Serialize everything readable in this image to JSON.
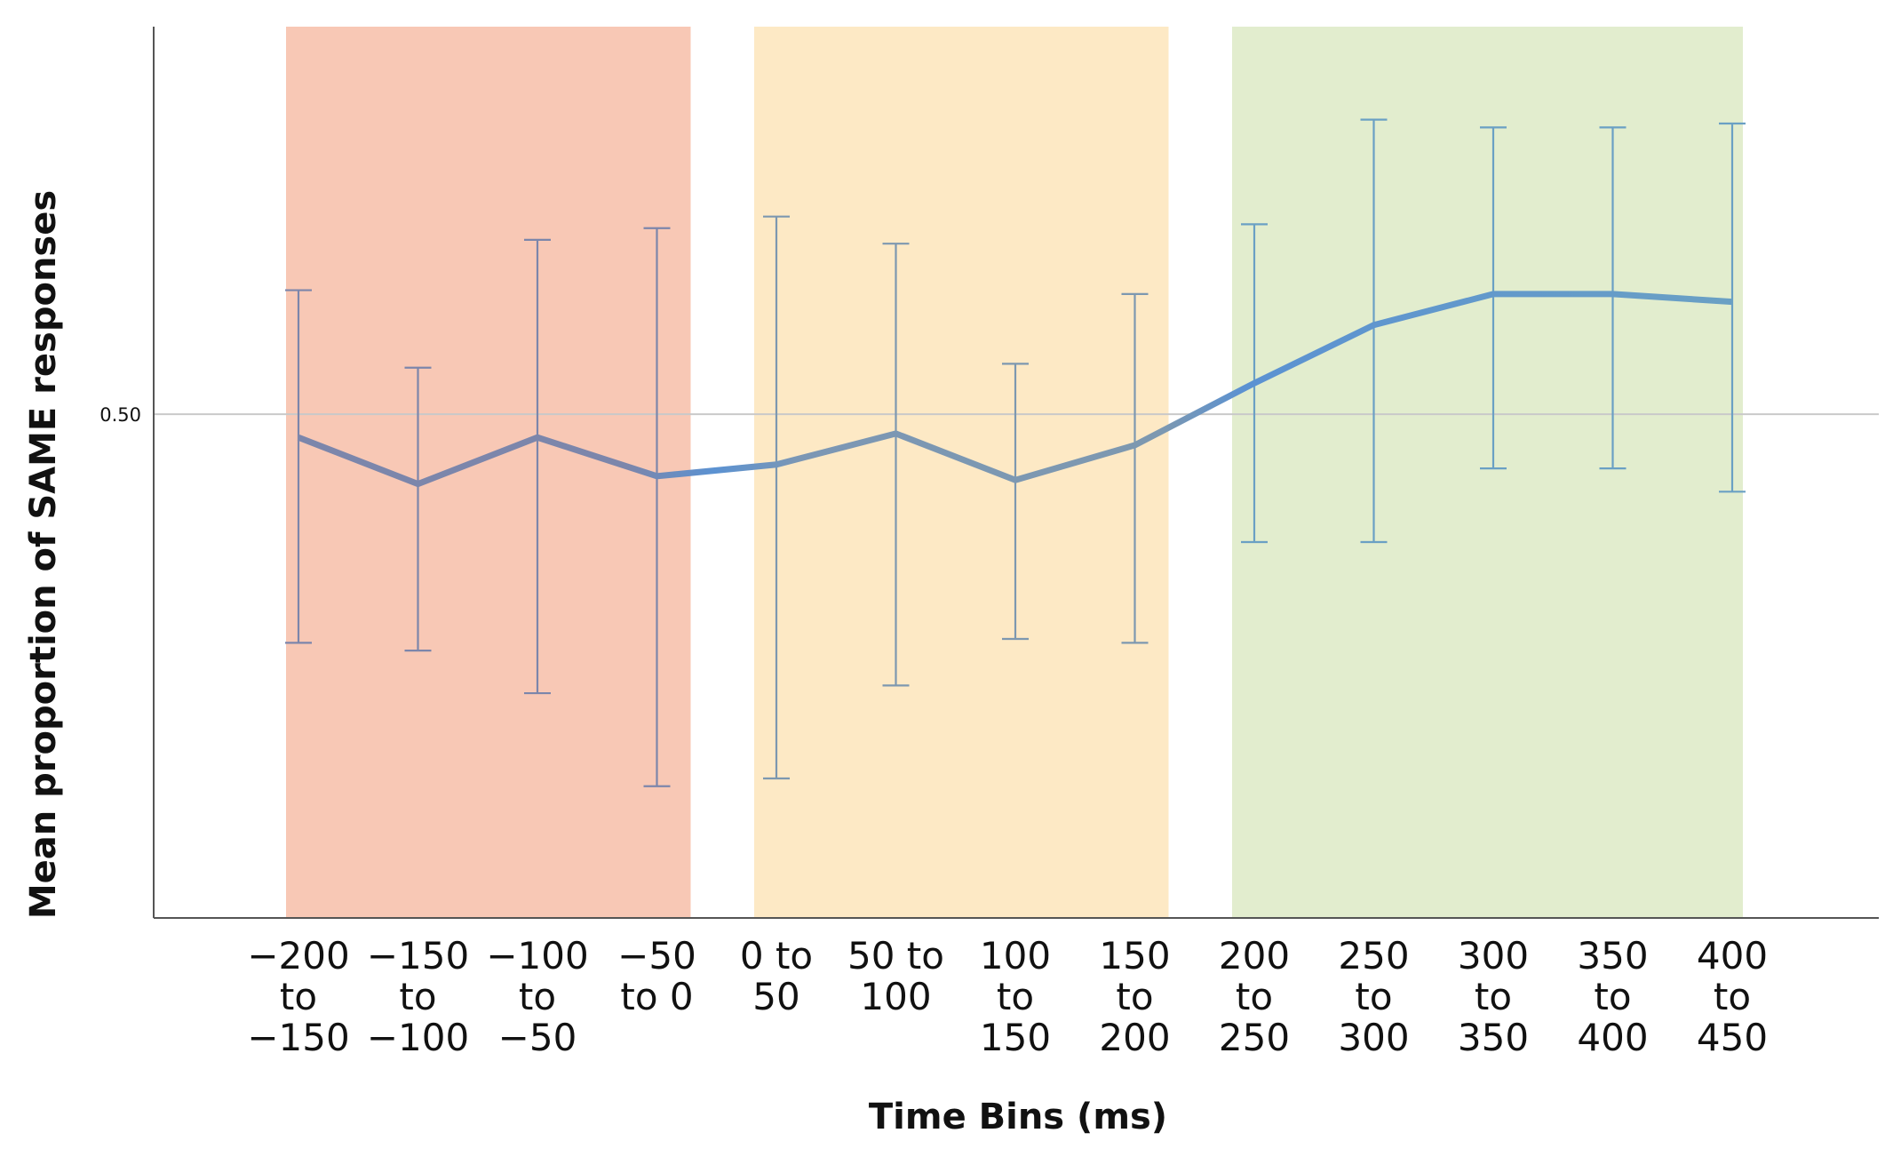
{
  "chart_data": {
    "type": "line",
    "title": "",
    "xlabel": "Time Bins (ms)",
    "ylabel": "Mean proportion of SAME responses",
    "categories": [
      [
        "-200",
        "to",
        "-150"
      ],
      [
        "-150",
        "to",
        "-100"
      ],
      [
        "-100",
        "to",
        "-50"
      ],
      [
        "-50",
        "to 0"
      ],
      [
        "0 to",
        "50"
      ],
      [
        "50 to",
        "100"
      ],
      [
        "100",
        "to",
        "150"
      ],
      [
        "150",
        "to",
        "200"
      ],
      [
        "200",
        "to",
        "250"
      ],
      [
        "250",
        "to",
        "300"
      ],
      [
        "300",
        "to",
        "350"
      ],
      [
        "350",
        "to",
        "400"
      ],
      [
        "400",
        "to",
        "450"
      ]
    ],
    "series": [
      {
        "values": [
          0.494,
          0.482,
          0.494,
          0.484,
          0.487,
          0.495,
          0.483,
          0.492,
          0.508,
          0.523,
          0.531,
          0.531,
          0.529
        ],
        "error_low": [
          0.441,
          0.439,
          0.428,
          0.404,
          0.406,
          0.43,
          0.442,
          0.441,
          0.467,
          0.467,
          0.486,
          0.486,
          0.48
        ],
        "error_high": [
          0.532,
          0.512,
          0.545,
          0.548,
          0.551,
          0.544,
          0.513,
          0.531,
          0.549,
          0.576,
          0.574,
          0.574,
          0.575
        ]
      }
    ],
    "reference_line": 0.5,
    "y_ticks": [
      {
        "value": 0.5,
        "label": "0.50"
      }
    ],
    "ylim": [
      0.37,
      0.6
    ],
    "regions": [
      {
        "from_category": 0,
        "to_category": 3,
        "color": "#f8c8b5"
      },
      {
        "from_category": 4,
        "to_category": 7,
        "color": "#fde9c5"
      },
      {
        "from_category": 8,
        "to_category": 12,
        "color": "#e2edce"
      }
    ],
    "colors": {
      "line_start": "#7c86ab",
      "line_mid": "#5b92d2",
      "line_end": "#6aa0c4",
      "gridline": "#c9c9c9",
      "axis": "#555555"
    },
    "grid": false,
    "legend": "none"
  }
}
